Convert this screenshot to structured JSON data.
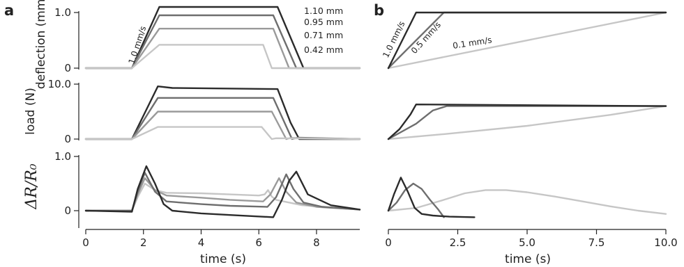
{
  "panel_letters": [
    "a",
    "b"
  ],
  "colors": {
    "dark": "#2b2b2b",
    "mid_dark": "#6e6e6e",
    "mid": "#9a9a9a",
    "light": "#c6c6c6",
    "axis": "#222222"
  },
  "chart_data": [
    {
      "id": "a-deflection",
      "type": "line",
      "ylabel": "deflection (mm)",
      "xlim": [
        0,
        9.5
      ],
      "ylim": [
        0,
        1.05
      ],
      "yticks": [
        0,
        1.0
      ],
      "ytick_labels": [
        "0",
        "1.0"
      ],
      "series": [
        {
          "name": "1.10 mm",
          "color": "dark",
          "x": [
            0,
            1.6,
            2.55,
            6.65,
            7.55,
            9.5
          ],
          "y": [
            0,
            0,
            1.1,
            1.1,
            0,
            0
          ]
        },
        {
          "name": "0.95 mm",
          "color": "mid_dark",
          "x": [
            0,
            1.6,
            2.55,
            6.5,
            7.3,
            9.5
          ],
          "y": [
            0,
            0,
            0.95,
            0.95,
            0,
            0
          ]
        },
        {
          "name": "0.71 mm",
          "color": "mid",
          "x": [
            0,
            1.6,
            2.55,
            6.5,
            7.05,
            9.5
          ],
          "y": [
            0,
            0,
            0.71,
            0.71,
            0,
            0
          ]
        },
        {
          "name": "0.42 mm",
          "color": "light",
          "x": [
            0,
            1.6,
            2.55,
            6.15,
            6.45,
            9.5
          ],
          "y": [
            0,
            0,
            0.42,
            0.42,
            0,
            0
          ]
        }
      ],
      "annotations": [
        {
          "text": "1.0 mm/s"
        }
      ]
    },
    {
      "id": "a-load",
      "type": "line",
      "ylabel": "load (N)",
      "xlim": [
        0,
        9.5
      ],
      "ylim": [
        0,
        10.5
      ],
      "yticks": [
        0,
        10.0
      ],
      "ytick_labels": [
        "0",
        "10.0"
      ],
      "series": [
        {
          "color": "dark",
          "x": [
            0,
            1.6,
            2.5,
            3,
            6.65,
            7.1,
            7.4,
            9.5
          ],
          "y": [
            0,
            0,
            9.6,
            9.3,
            9.1,
            3,
            0,
            0
          ]
        },
        {
          "color": "mid_dark",
          "x": [
            0,
            1.6,
            2.5,
            6.5,
            7.15,
            7.35,
            9.5
          ],
          "y": [
            0,
            0,
            7.5,
            7.5,
            0,
            0.25,
            0
          ]
        },
        {
          "color": "mid",
          "x": [
            0,
            1.6,
            2.5,
            6.45,
            6.95,
            7.1,
            9.5
          ],
          "y": [
            0,
            0,
            5.0,
            5.0,
            0,
            0.2,
            0
          ]
        },
        {
          "color": "light",
          "x": [
            0,
            1.6,
            2.5,
            6.1,
            6.45,
            6.6,
            9.5
          ],
          "y": [
            0,
            0,
            2.2,
            2.2,
            0,
            0.15,
            0
          ]
        }
      ]
    },
    {
      "id": "a-resistance",
      "type": "line",
      "ylabel": "ΔR/R₀",
      "xlabel": "time (s)",
      "xlim": [
        0,
        9.5
      ],
      "ylim": [
        -0.12,
        1.0
      ],
      "xticks": [
        0,
        2,
        4,
        6,
        8
      ],
      "xtick_labels": [
        "0",
        "2",
        "4",
        "6",
        "8"
      ],
      "yticks": [
        0,
        1.0
      ],
      "ytick_labels": [
        "0",
        "1.0"
      ],
      "series": [
        {
          "color": "light",
          "x": [
            0,
            1.6,
            1.8,
            2.05,
            2.4,
            2.8,
            4,
            5,
            6,
            6.2,
            6.32,
            6.45,
            6.6,
            7.5,
            9.5
          ],
          "y": [
            0,
            0,
            0.25,
            0.5,
            0.38,
            0.33,
            0.32,
            0.3,
            0.28,
            0.3,
            0.38,
            0.26,
            0.2,
            0.1,
            0.02
          ]
        },
        {
          "color": "mid",
          "x": [
            0,
            1.6,
            1.8,
            2.05,
            2.4,
            2.8,
            4,
            5,
            6.15,
            6.4,
            6.7,
            6.95,
            7.3,
            8,
            9.5
          ],
          "y": [
            0,
            0,
            0.3,
            0.6,
            0.38,
            0.28,
            0.24,
            0.2,
            0.17,
            0.3,
            0.6,
            0.35,
            0.15,
            0.07,
            0.02
          ]
        },
        {
          "color": "mid_dark",
          "x": [
            0,
            1.6,
            1.8,
            2.05,
            2.4,
            2.8,
            4,
            5,
            6.3,
            6.6,
            6.95,
            7.2,
            7.55,
            8.2,
            9.5
          ],
          "y": [
            0,
            0,
            0.35,
            0.7,
            0.35,
            0.17,
            0.12,
            0.09,
            0.07,
            0.25,
            0.67,
            0.4,
            0.15,
            0.07,
            0.02
          ]
        },
        {
          "color": "dark",
          "x": [
            0,
            1.6,
            1.8,
            2.1,
            2.4,
            2.7,
            3,
            4,
            5,
            6.5,
            6.8,
            7.05,
            7.3,
            7.7,
            8.5,
            9.5
          ],
          "y": [
            0,
            -0.02,
            0.4,
            0.82,
            0.5,
            0.12,
            0.0,
            -0.05,
            -0.08,
            -0.12,
            0.2,
            0.55,
            0.72,
            0.3,
            0.1,
            0.02
          ]
        }
      ]
    },
    {
      "id": "b-deflection",
      "type": "line",
      "xlim": [
        0,
        10
      ],
      "ylim": [
        0,
        1.05
      ],
      "series": [
        {
          "color": "light",
          "x": [
            0,
            10
          ],
          "y": [
            0,
            1.0
          ]
        },
        {
          "color": "mid_dark",
          "x": [
            0,
            2,
            10
          ],
          "y": [
            0,
            1.0,
            1.0
          ]
        },
        {
          "color": "dark",
          "x": [
            0,
            1,
            10
          ],
          "y": [
            0,
            1.0,
            1.0
          ]
        }
      ],
      "annotations": [
        {
          "text": "1.0 mm/s"
        },
        {
          "text": "0.5 mm/s"
        },
        {
          "text": "0.1 mm/s"
        }
      ]
    },
    {
      "id": "b-load",
      "type": "line",
      "xlim": [
        0,
        10
      ],
      "ylim": [
        0,
        10.5
      ],
      "series": [
        {
          "color": "light",
          "x": [
            0,
            2,
            5,
            8,
            10
          ],
          "y": [
            0,
            0.9,
            2.4,
            4.4,
            6.0
          ]
        },
        {
          "color": "mid_dark",
          "x": [
            0,
            1,
            1.6,
            2.1,
            10
          ],
          "y": [
            0,
            2.8,
            5.2,
            6.0,
            6.0
          ]
        },
        {
          "color": "dark",
          "x": [
            0,
            0.4,
            0.8,
            1.0,
            10
          ],
          "y": [
            0,
            1.8,
            4.5,
            6.3,
            6.0
          ]
        }
      ]
    },
    {
      "id": "b-resistance",
      "type": "line",
      "xlabel": "time (s)",
      "xlim": [
        0,
        10
      ],
      "ylim": [
        -0.12,
        1.0
      ],
      "xticks": [
        0,
        2.5,
        5,
        7.5,
        10
      ],
      "xtick_labels": [
        "0",
        "2.5",
        "5.0",
        "7.5",
        "10.0"
      ],
      "series": [
        {
          "color": "light",
          "x": [
            0,
            1,
            2,
            2.75,
            3.5,
            4.25,
            5,
            6,
            7,
            8,
            9,
            10
          ],
          "y": [
            0,
            0.05,
            0.2,
            0.32,
            0.38,
            0.38,
            0.34,
            0.26,
            0.17,
            0.08,
            0.0,
            -0.06
          ]
        },
        {
          "color": "mid_dark",
          "x": [
            0,
            0.3,
            0.6,
            0.9,
            1.2,
            1.5,
            1.8,
            2.0
          ],
          "y": [
            0,
            0.15,
            0.38,
            0.5,
            0.4,
            0.2,
            0.02,
            -0.12
          ]
        },
        {
          "color": "dark",
          "x": [
            0,
            0.2,
            0.45,
            0.7,
            0.95,
            1.2,
            1.6,
            2.2,
            3.1
          ],
          "y": [
            0,
            0.3,
            0.61,
            0.35,
            0.05,
            -0.06,
            -0.09,
            -0.11,
            -0.12
          ]
        }
      ]
    }
  ]
}
